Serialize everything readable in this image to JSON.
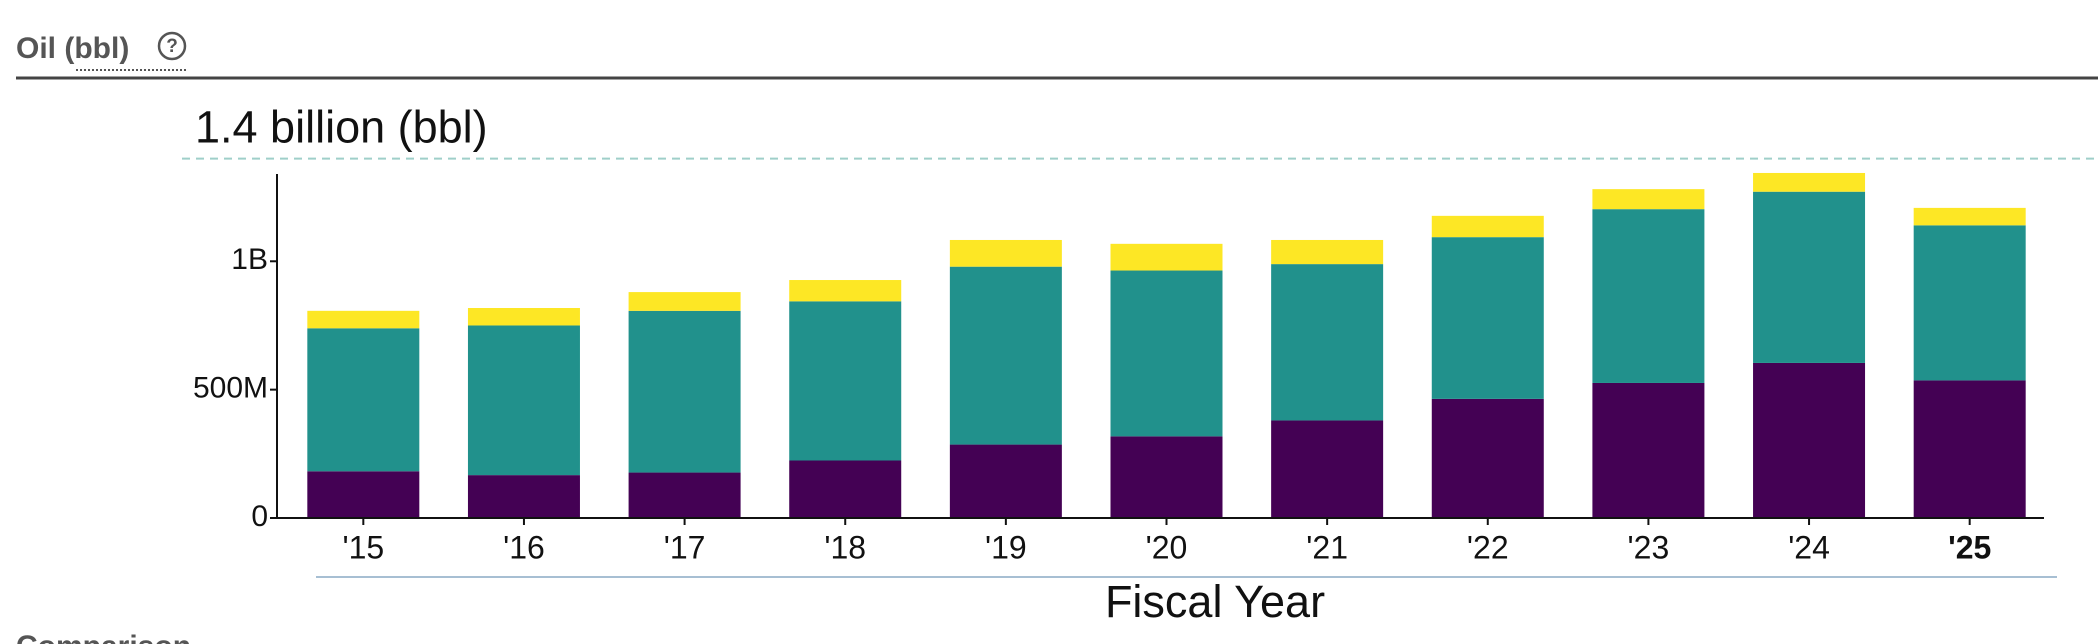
{
  "header": {
    "title": "Oil (bbl)",
    "help_icon": "?"
  },
  "chart_data": {
    "type": "stacked-bar",
    "reference_line": {
      "value": 1400000000,
      "label": "1.4 billion (bbl)"
    },
    "x_label": "Fiscal Year",
    "categories": [
      "'15",
      "'16",
      "'17",
      "'18",
      "'19",
      "'20",
      "'21",
      "'22",
      "'23",
      "'24",
      "'25"
    ],
    "series": [
      {
        "color": "#440154",
        "values": [
          182000000,
          167000000,
          177000000,
          224000000,
          286000000,
          318000000,
          380000000,
          464000000,
          526000000,
          604000000,
          536000000
        ]
      },
      {
        "color": "#21918c",
        "values": [
          557000000,
          583000000,
          630000000,
          620000000,
          693000000,
          646000000,
          609000000,
          630000000,
          677000000,
          667000000,
          604000000
        ]
      },
      {
        "color": "#fde725",
        "values": [
          68000000,
          68000000,
          73000000,
          83000000,
          104000000,
          104000000,
          94000000,
          83000000,
          78000000,
          73000000,
          68000000
        ]
      }
    ],
    "ylim": [
      0,
      1340000000
    ],
    "yticks": [
      0,
      {
        "value": 500000000,
        "label": "500M"
      },
      {
        "value": 1000000000,
        "label": "1B"
      }
    ],
    "grid": false
  },
  "next_section": {
    "title": "Comparison"
  }
}
